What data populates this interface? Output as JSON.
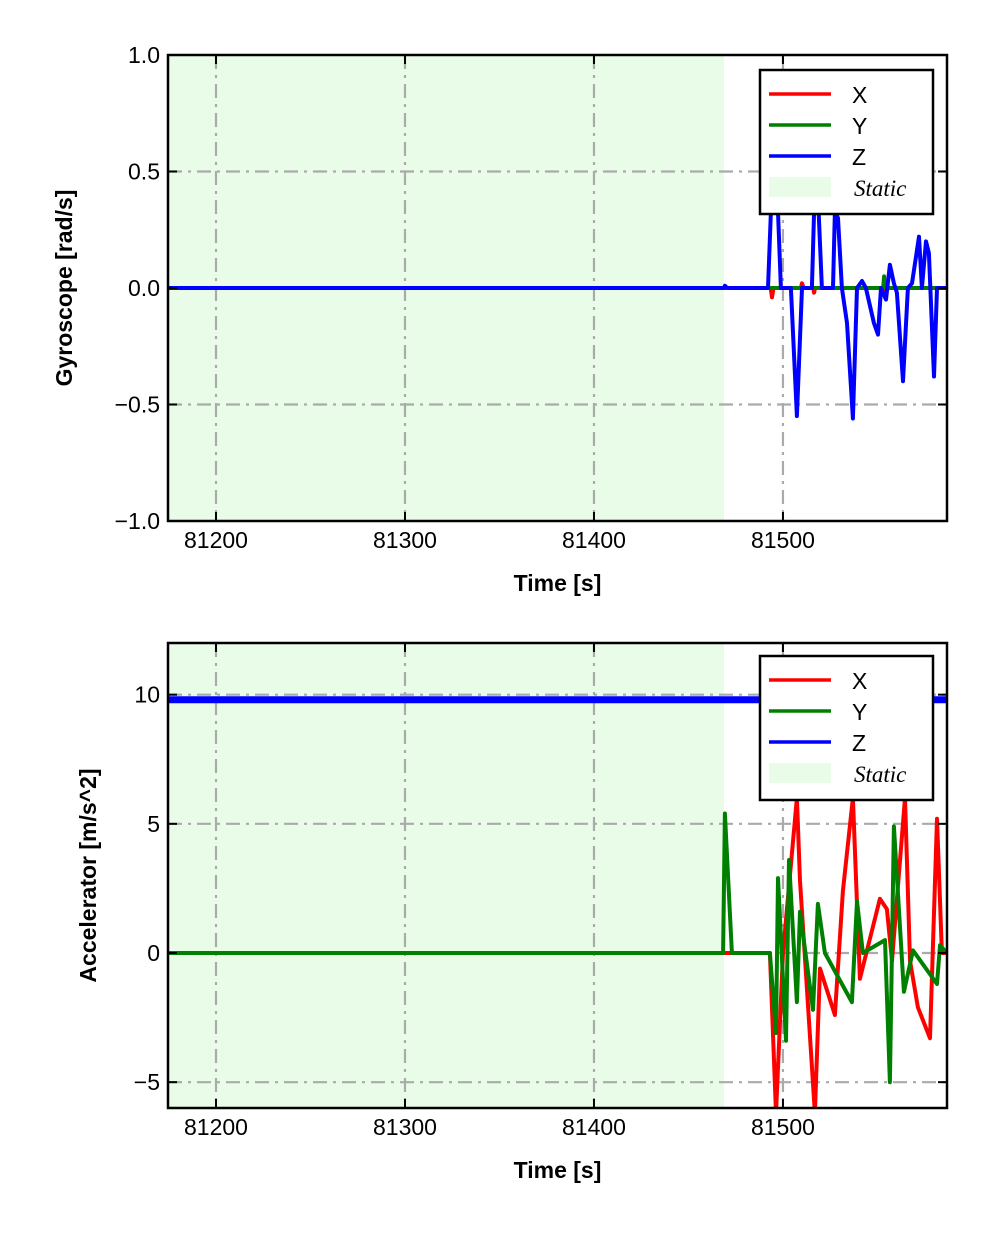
{
  "chart_data": [
    {
      "type": "line",
      "xlabel": "Time [s]",
      "ylabel": "Gyroscope [rad/s]",
      "xlim": [
        81174.6,
        81586.8
      ],
      "ylim": [
        -1.0,
        1.0
      ],
      "xticks": [
        81200,
        81300,
        81400,
        81500
      ],
      "xtick_labels": [
        "81200",
        "81300",
        "81400",
        "81500"
      ],
      "yticks": [
        -1.0,
        -0.5,
        0.0,
        0.5,
        1.0
      ],
      "ytick_labels": [
        "−1.0",
        "−0.5",
        "0.0",
        "0.5",
        "1.0"
      ],
      "grid": true,
      "legend_position": "top-right",
      "shaded_region": {
        "name": "Static",
        "x": [
          81174.6,
          81468.8
        ],
        "color": "#e8fce8"
      },
      "series": [
        {
          "name": "X",
          "color": "#ff0000",
          "points": [
            [
              81174.6,
              0
            ],
            [
              81493.5,
              0
            ],
            [
              81494.2,
              -0.04
            ],
            [
              81495,
              0
            ],
            [
              81509.5,
              0
            ],
            [
              81510.1,
              0.02
            ],
            [
              81511,
              0
            ],
            [
              81516,
              0
            ],
            [
              81516.5,
              -0.02
            ],
            [
              81517,
              0
            ],
            [
              81553.5,
              0
            ],
            [
              81554,
              -0.04
            ],
            [
              81554.5,
              0
            ],
            [
              81586.8,
              0
            ]
          ]
        },
        {
          "name": "Y",
          "color": "#008000",
          "points": [
            [
              81174.6,
              0
            ],
            [
              81553,
              0
            ],
            [
              81553.5,
              0.05
            ],
            [
              81554,
              0
            ],
            [
              81586.8,
              0
            ]
          ]
        },
        {
          "name": "Z",
          "color": "#0000ff",
          "points": [
            [
              81174.6,
              0
            ],
            [
              81468.8,
              0
            ],
            [
              81469.3,
              0.01
            ],
            [
              81470.5,
              0
            ],
            [
              81492.1,
              0
            ],
            [
              81494.2,
              0.45
            ],
            [
              81496.8,
              0.45
            ],
            [
              81498.9,
              0
            ],
            [
              81504.2,
              0
            ],
            [
              81507.4,
              -0.55
            ],
            [
              81510.1,
              0
            ],
            [
              81515.3,
              0
            ],
            [
              81516.9,
              0.45
            ],
            [
              81518.5,
              0.4
            ],
            [
              81520.6,
              0
            ],
            [
              81526.5,
              0
            ],
            [
              81527.5,
              0.33
            ],
            [
              81529.1,
              0.3
            ],
            [
              81531.2,
              0
            ],
            [
              81533.9,
              -0.15
            ],
            [
              81537.0,
              -0.56
            ],
            [
              81539.2,
              0
            ],
            [
              81541.8,
              0.03
            ],
            [
              81543.9,
              0
            ],
            [
              81548.1,
              -0.15
            ],
            [
              81550.3,
              -0.2
            ],
            [
              81551.9,
              0
            ],
            [
              81554.5,
              -0.05
            ],
            [
              81556.6,
              0.1
            ],
            [
              81558.7,
              0.02
            ],
            [
              81560.3,
              -0.02
            ],
            [
              81563.5,
              -0.4
            ],
            [
              81566.1,
              0
            ],
            [
              81568.3,
              0.02
            ],
            [
              81572.0,
              0.22
            ],
            [
              81573.5,
              0
            ],
            [
              81575.7,
              0.2
            ],
            [
              81577.2,
              0.15
            ],
            [
              81579.9,
              -0.38
            ],
            [
              81581.5,
              0
            ],
            [
              81586.8,
              0
            ]
          ]
        }
      ]
    },
    {
      "type": "line",
      "xlabel": "Time [s]",
      "ylabel": "Accelerator [m/s^2]",
      "xlim": [
        81174.6,
        81586.8
      ],
      "ylim": [
        -6.0,
        12.0
      ],
      "xticks": [
        81200,
        81300,
        81400,
        81500
      ],
      "xtick_labels": [
        "81200",
        "81300",
        "81400",
        "81500"
      ],
      "yticks": [
        -5,
        0,
        5,
        10
      ],
      "ytick_labels": [
        "−5",
        "0",
        "5",
        "10"
      ],
      "grid": true,
      "legend_position": "top-right",
      "shaded_region": {
        "name": "Static",
        "x": [
          81174.6,
          81468.8
        ],
        "color": "#e8fce8"
      },
      "series": [
        {
          "name": "X",
          "color": "#ff0000",
          "points": [
            [
              81174.6,
              0
            ],
            [
              81493.1,
              0
            ],
            [
              81496.3,
              -6.2
            ],
            [
              81500.0,
              0
            ],
            [
              81507.4,
              6.0
            ],
            [
              81509.0,
              2.8
            ],
            [
              81516.9,
              -6.2
            ],
            [
              81519.6,
              -0.6
            ],
            [
              81527.5,
              -2.4
            ],
            [
              81531.7,
              2.4
            ],
            [
              81537.0,
              6.0
            ],
            [
              81540.7,
              -1.0
            ],
            [
              81551.3,
              2.1
            ],
            [
              81555.0,
              1.7
            ],
            [
              81557.7,
              -0.3
            ],
            [
              81564.6,
              6.0
            ],
            [
              81567.2,
              -0.3
            ],
            [
              81571.4,
              -2.1
            ],
            [
              81577.8,
              -3.3
            ],
            [
              81581.5,
              5.2
            ],
            [
              81584.1,
              0
            ],
            [
              81586.8,
              0
            ]
          ]
        },
        {
          "name": "Y",
          "color": "#008000",
          "points": [
            [
              81174.6,
              0
            ],
            [
              81468.3,
              0
            ],
            [
              81469.3,
              5.4
            ],
            [
              81473.0,
              0
            ],
            [
              81493.1,
              0
            ],
            [
              81496.3,
              -3.1
            ],
            [
              81497.4,
              2.9
            ],
            [
              81501.6,
              -3.4
            ],
            [
              81503.2,
              3.6
            ],
            [
              81507.4,
              -1.9
            ],
            [
              81509.0,
              1.6
            ],
            [
              81515.9,
              -2.2
            ],
            [
              81518.5,
              1.9
            ],
            [
              81522.2,
              0
            ],
            [
              81536.5,
              -1.9
            ],
            [
              81539.2,
              2.0
            ],
            [
              81542.3,
              0
            ],
            [
              81554.0,
              0.5
            ],
            [
              81556.6,
              -5.0
            ],
            [
              81558.7,
              4.9
            ],
            [
              81564.0,
              -1.5
            ],
            [
              81568.8,
              0.1
            ],
            [
              81581.5,
              -1.2
            ],
            [
              81583.1,
              0.3
            ],
            [
              81586.8,
              0
            ]
          ]
        },
        {
          "name": "Z",
          "color": "#0000ff",
          "points": [
            [
              81174.6,
              9.8
            ],
            [
              81586.8,
              9.8
            ]
          ]
        }
      ]
    }
  ]
}
